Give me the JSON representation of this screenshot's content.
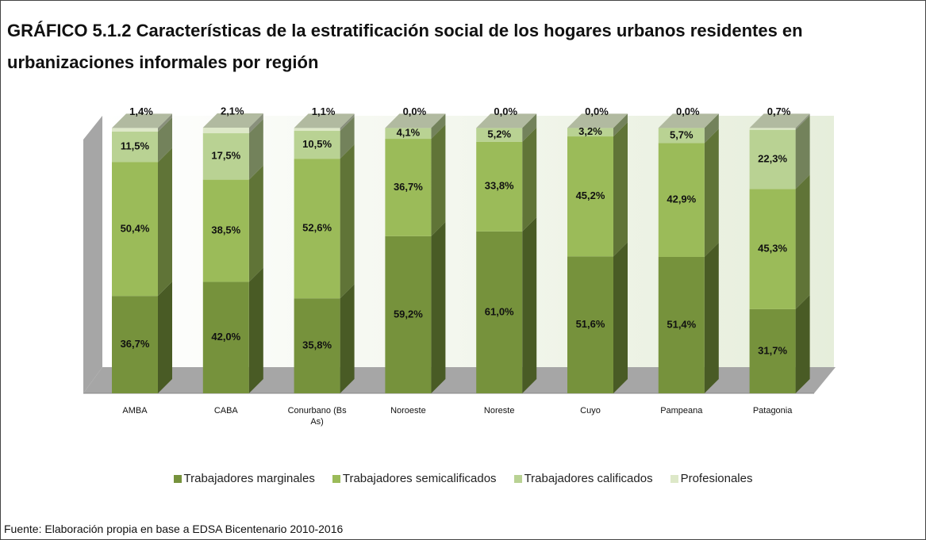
{
  "chart_data": {
    "type": "bar3d_stacked",
    "title": "GRÁFICO 5.1.2 Características de la estratificación social de los hogares urbanos residentes en urbanizaciones informales por región",
    "categories": [
      "AMBA",
      "CABA",
      "Conurbano (Bs As)",
      "Noroeste",
      "Noreste",
      "Cuyo",
      "Pampeana",
      "Patagonia"
    ],
    "series": [
      {
        "name": "Trabajadores marginales",
        "color": "#76923c",
        "values": [
          36.7,
          42.0,
          35.8,
          59.2,
          61.0,
          51.6,
          51.4,
          31.7
        ],
        "value_labels": [
          "36,7%",
          "42,0%",
          "35,8%",
          "59,2%",
          "61,0%",
          "51,6%",
          "51,4%",
          "31,7%"
        ]
      },
      {
        "name": "Trabajadores semicalificados",
        "color": "#9bbb59",
        "values": [
          50.4,
          38.5,
          52.6,
          36.7,
          33.8,
          45.2,
          42.9,
          45.3
        ],
        "value_labels": [
          "50,4%",
          "38,5%",
          "52,6%",
          "36,7%",
          "33,8%",
          "45,2%",
          "42,9%",
          "45,3%"
        ]
      },
      {
        "name": "Trabajadores calificados",
        "color": "#b9d293",
        "values": [
          11.5,
          17.5,
          10.5,
          4.1,
          5.2,
          3.2,
          5.7,
          22.3
        ],
        "value_labels": [
          "11,5%",
          "17,5%",
          "10,5%",
          "4,1%",
          "5,2%",
          "3,2%",
          "5,7%",
          "22,3%"
        ]
      },
      {
        "name": "Profesionales",
        "color": "#dde8c8",
        "values": [
          1.4,
          2.1,
          1.1,
          0.0,
          0.0,
          0.0,
          0.0,
          0.7
        ],
        "value_labels": [
          "1,4%",
          "2,1%",
          "1,1%",
          "0,0%",
          "0,0%",
          "0,0%",
          "0,0%",
          "0,7%"
        ]
      }
    ],
    "source": "Fuente: Elaboración propia en base a EDSA Bicentenario 2010-2016"
  }
}
